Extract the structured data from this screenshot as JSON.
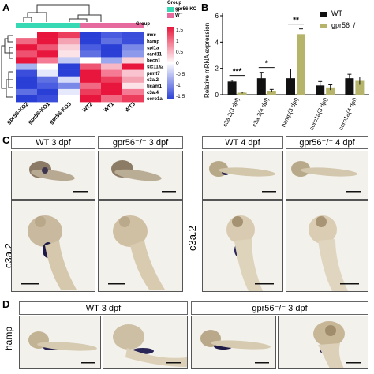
{
  "panels": {
    "A": "A",
    "B": "B",
    "C": "C",
    "D": "D"
  },
  "heatmap": {
    "legend_title": "Group",
    "legend_items": [
      {
        "label": "gpr56-KO",
        "color": "#37d9b4"
      },
      {
        "label": "WT",
        "color": "#e66a9d"
      }
    ],
    "group_row_label": "Group",
    "colorbar_ticks": [
      "1.5",
      "1",
      "0.5",
      "0",
      "-0.5",
      "-1",
      "-1.5"
    ],
    "genes": [
      "mxc",
      "hamp",
      "spi1a",
      "card11",
      "becn1",
      "slc11a2",
      "prmt7",
      "c3a.2",
      "ticam1",
      "c3a.4",
      "coro1a"
    ],
    "samples": [
      "gpr56-KO2",
      "gpr56-KO1",
      "gpr56-KO3",
      "WT2",
      "WT1",
      "WT3"
    ],
    "sample_groups": [
      "gpr56-KO",
      "gpr56-KO",
      "gpr56-KO",
      "WT",
      "WT",
      "WT"
    ],
    "colors": {
      "high": "#e8163c",
      "mid": "#ffffff",
      "low": "#2a3fd6"
    }
  },
  "chart_data": {
    "type": "bar",
    "ylabel": "Relative mRNA expression",
    "ylim": [
      0,
      6
    ],
    "yticks": [
      0,
      2,
      4,
      6
    ],
    "categories": [
      "c3a.2(3 dpf)",
      "c3a.2(4 dpf)",
      "hamp(3 dpf)",
      "coro1a(3 dpf)",
      "coro1a(4 dpf)"
    ],
    "series": [
      {
        "name": "WT",
        "color": "#111111",
        "values": [
          1.0,
          1.25,
          1.25,
          0.7,
          1.25
        ],
        "errors": [
          0.1,
          0.45,
          0.7,
          0.3,
          0.3
        ]
      },
      {
        "name": "gpr56⁻/⁻",
        "color": "#b5b46a",
        "values": [
          0.15,
          0.3,
          4.6,
          0.55,
          1.05
        ],
        "errors": [
          0.05,
          0.1,
          0.4,
          0.2,
          0.3
        ]
      }
    ],
    "significance": [
      {
        "category": "c3a.2(3 dpf)",
        "label": "***"
      },
      {
        "category": "c3a.2(4 dpf)",
        "label": "*"
      },
      {
        "category": "hamp(3 dpf)",
        "label": "**"
      }
    ]
  },
  "panelC": {
    "row_label": "c3a.2",
    "left_labels": [
      "WT   3 dpf",
      "gpr56⁻/⁻  3 dpf"
    ],
    "right_labels": [
      "WT   4 dpf",
      "gpr56⁻/⁻   4 dpf"
    ]
  },
  "panelD": {
    "row_label": "hamp",
    "labels": [
      "WT   3 dpf",
      "gpr56⁻/⁻   3 dpf"
    ]
  }
}
